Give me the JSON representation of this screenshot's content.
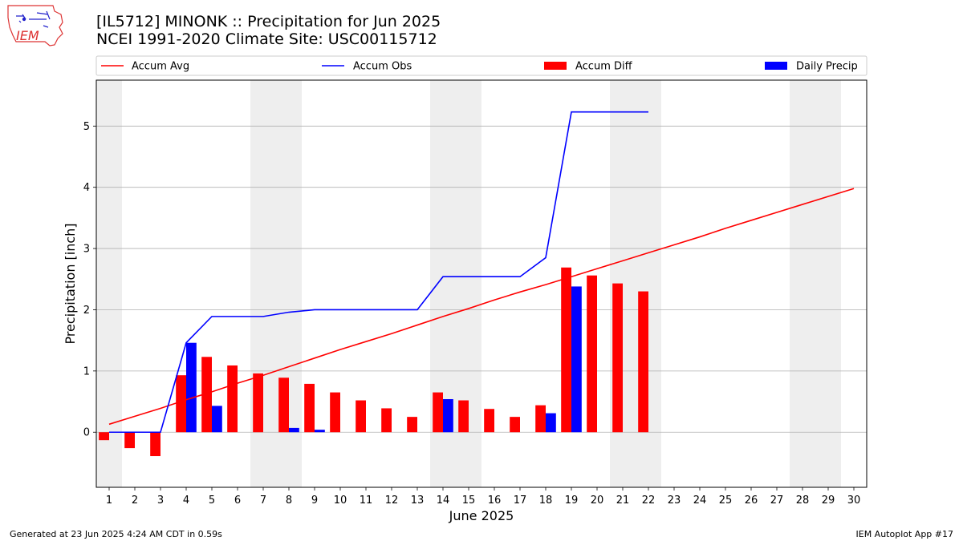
{
  "header": {
    "title_line1": "[IL5712] MINONK :: Precipitation for Jun 2025",
    "title_line2": "NCEI 1991-2020 Climate Site: USC00115712",
    "logo_text": "IEM"
  },
  "footer": {
    "left": "Generated at 23 Jun 2025 4:24 AM CDT in 0.59s",
    "right": "IEM Autoplot App #17"
  },
  "colors": {
    "accum_avg": "#ff0000",
    "accum_obs": "#0000ff",
    "accum_diff": "#ff0000",
    "daily_precip": "#0000ff",
    "weekend_shade": "#eeeeee",
    "grid": "#b0b0b0"
  },
  "chart_data": {
    "type": "bar",
    "xlabel": "June 2025",
    "ylabel": "Precipitation [inch]",
    "xlim": [
      0.5,
      30.5
    ],
    "ylim": [
      -0.9,
      5.75
    ],
    "yticks": [
      0,
      1,
      2,
      3,
      4,
      5
    ],
    "x_ticks": [
      1,
      2,
      3,
      4,
      5,
      6,
      7,
      8,
      9,
      10,
      11,
      12,
      13,
      14,
      15,
      16,
      17,
      18,
      19,
      20,
      21,
      22,
      23,
      24,
      25,
      26,
      27,
      28,
      29,
      30
    ],
    "grid": "horizontal",
    "legend_position": "top",
    "weekend_days": [
      1,
      7,
      8,
      14,
      15,
      21,
      22,
      28,
      29
    ],
    "legend": [
      "Accum Avg",
      "Accum Obs",
      "Accum Diff",
      "Daily Precip"
    ],
    "accum_avg": {
      "name": "Accum Avg",
      "x": [
        1,
        2,
        3,
        4,
        5,
        6,
        7,
        8,
        9,
        10,
        11,
        12,
        13,
        14,
        15,
        16,
        17,
        18,
        19,
        20,
        21,
        22,
        23,
        24,
        25,
        26,
        27,
        28,
        29,
        30
      ],
      "values": [
        0.13,
        0.26,
        0.39,
        0.53,
        0.66,
        0.8,
        0.93,
        1.07,
        1.21,
        1.35,
        1.48,
        1.61,
        1.75,
        1.89,
        2.02,
        2.16,
        2.29,
        2.41,
        2.54,
        2.67,
        2.8,
        2.93,
        3.06,
        3.19,
        3.33,
        3.46,
        3.59,
        3.72,
        3.85,
        3.98
      ]
    },
    "accum_obs": {
      "name": "Accum Obs",
      "x": [
        1,
        2,
        3,
        4,
        5,
        6,
        7,
        8,
        9,
        10,
        11,
        12,
        13,
        14,
        15,
        16,
        17,
        18,
        19,
        20,
        21,
        22
      ],
      "values": [
        0,
        0,
        0,
        1.46,
        1.89,
        1.89,
        1.89,
        1.96,
        2.0,
        2.0,
        2.0,
        2.0,
        2.0,
        2.54,
        2.54,
        2.54,
        2.54,
        2.85,
        5.23,
        5.23,
        5.23,
        5.23
      ]
    },
    "accum_diff": {
      "name": "Accum Diff",
      "x": [
        1,
        2,
        3,
        4,
        5,
        6,
        7,
        8,
        9,
        10,
        11,
        12,
        13,
        14,
        15,
        16,
        17,
        18,
        19,
        20,
        21,
        22
      ],
      "values": [
        -0.13,
        -0.26,
        -0.39,
        0.93,
        1.23,
        1.09,
        0.96,
        0.89,
        0.79,
        0.65,
        0.52,
        0.39,
        0.25,
        0.65,
        0.52,
        0.38,
        0.25,
        0.44,
        2.69,
        2.56,
        2.43,
        2.3
      ]
    },
    "daily_precip": {
      "name": "Daily Precip",
      "x": [
        1,
        2,
        3,
        4,
        5,
        6,
        7,
        8,
        9,
        10,
        11,
        12,
        13,
        14,
        15,
        16,
        17,
        18,
        19,
        20,
        21,
        22
      ],
      "values": [
        0,
        0,
        0,
        1.46,
        0.43,
        0,
        0,
        0.07,
        0.04,
        0,
        0,
        0,
        0,
        0.54,
        0,
        0,
        0,
        0.31,
        2.38,
        0,
        0,
        0
      ]
    }
  }
}
